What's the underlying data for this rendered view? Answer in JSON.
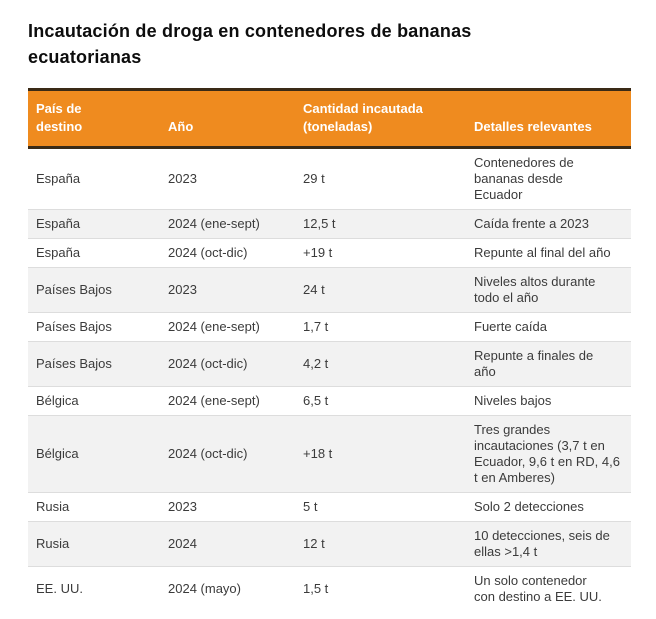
{
  "title": "Incautación de droga en contenedores de bananas ecuatorianas",
  "header": {
    "col0": "País de\ndestino",
    "col1": "Año",
    "col2": "Cantidad incautada\n(toneladas)",
    "col3": "Detalles relevantes"
  },
  "chart_data": {
    "type": "table",
    "title": "Incautación de droga en contenedores de bananas ecuatorianas",
    "columns": [
      "País de destino",
      "Año",
      "Cantidad incautada (toneladas)",
      "Detalles relevantes"
    ],
    "rows": [
      [
        "España",
        "2023",
        "29 t",
        "Contenedores de\nbananas desde\nEcuador"
      ],
      [
        "España",
        "2024 (ene-sept)",
        "12,5 t",
        "Caída frente a 2023"
      ],
      [
        "España",
        "2024 (oct-dic)",
        "+19 t",
        "Repunte al final del año"
      ],
      [
        "Países Bajos",
        "2023",
        "24 t",
        "Niveles altos durante\ntodo el año"
      ],
      [
        "Países Bajos",
        "2024 (ene-sept)",
        "1,7 t",
        "Fuerte caída"
      ],
      [
        "Países Bajos",
        "2024 (oct-dic)",
        "4,2 t",
        "Repunte a finales de\naño"
      ],
      [
        "Bélgica",
        "2024 (ene-sept)",
        "6,5 t",
        "Niveles bajos"
      ],
      [
        "Bélgica",
        "2024 (oct-dic)",
        "+18 t",
        "Tres grandes\nincautaciones (3,7 t en\nEcuador, 9,6 t en RD, 4,6\nt en Amberes)"
      ],
      [
        "Rusia",
        "2023",
        "5 t",
        "Solo 2 detecciones"
      ],
      [
        "Rusia",
        "2024",
        "12 t",
        "10 detecciones, seis de\nellas >1,4 t"
      ],
      [
        "EE. UU.",
        "2024 (mayo)",
        "1,5 t",
        "Un solo contenedor\ncon destino a EE. UU."
      ]
    ]
  },
  "colors": {
    "header_bg": "#ef8b1f",
    "header_border": "#3a2a16",
    "header_text": "#ffffff",
    "row_stripe": "#f2f2f2",
    "row_divider": "#dddddd",
    "body_text": "#3b3b3b",
    "title_text": "#0d0d0d"
  }
}
